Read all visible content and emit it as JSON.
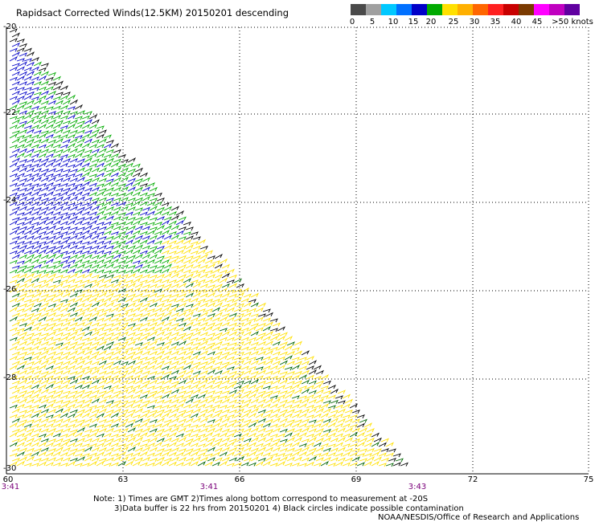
{
  "title": "Rapidsact Corrected Winds(12.5KM) 20150201 descending",
  "legend": {
    "colors": [
      "#4a4a4a",
      "#a0a0a0",
      "#00c8ff",
      "#0070ff",
      "#0000c8",
      "#00aa00",
      "#ffe000",
      "#ffb000",
      "#ff6600",
      "#ff2020",
      "#c80000",
      "#7a3a00",
      "#ff00ff",
      "#c000c0",
      "#6000a0"
    ],
    "labels": [
      "0",
      "5",
      "10",
      "15",
      "20",
      "25",
      "30",
      "35",
      "40",
      "45",
      ">50 knots"
    ],
    "units": "knots"
  },
  "map": {
    "lat_labels": [
      "-20",
      "-22",
      "-24",
      "-26",
      "-28",
      "-30"
    ],
    "lon_labels": [
      "60",
      "63",
      "66",
      "69",
      "72",
      "75"
    ],
    "time_labels": [
      "3:41",
      "3:41",
      "3:43"
    ]
  },
  "wind_colors": {
    "slow": "#0000c8",
    "moderate": "#00aa00",
    "fast": "#ffe000",
    "dark": "#006400",
    "edge": "#000000"
  },
  "notes": {
    "line1": "Note: 1) Times are GMT 2)Times along bottom correspond to measurement at -20S",
    "line2": "3)Data buffer is 22 hrs from 20150201 4) Black circles indicate possible contamination",
    "line3": "NOAA/NESDIS/Office of Research and Applications"
  }
}
